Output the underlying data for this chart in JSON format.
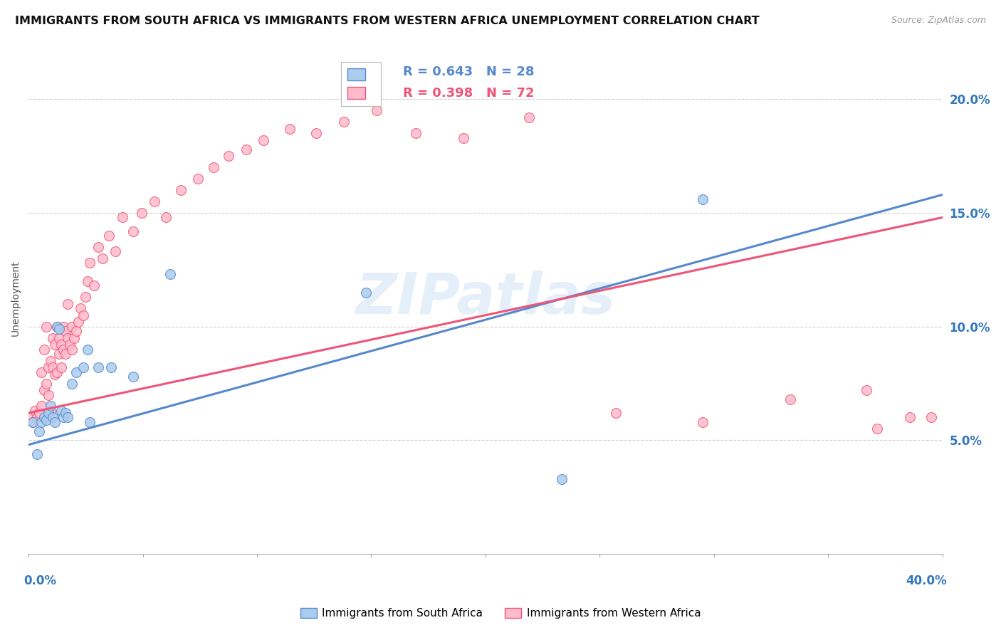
{
  "title": "IMMIGRANTS FROM SOUTH AFRICA VS IMMIGRANTS FROM WESTERN AFRICA UNEMPLOYMENT CORRELATION CHART",
  "source": "Source: ZipAtlas.com",
  "ylabel": "Unemployment",
  "yticks": [
    0.05,
    0.1,
    0.15,
    0.2
  ],
  "ytick_labels": [
    "5.0%",
    "10.0%",
    "15.0%",
    "20.0%"
  ],
  "xlim": [
    0.0,
    0.42
  ],
  "ylim": [
    0.0,
    0.225
  ],
  "blue_color": "#5588CC",
  "pink_color": "#EE5577",
  "blue_fill": "#AACCEE",
  "pink_fill": "#FFBBCC",
  "blue_scatter_x": [
    0.002,
    0.004,
    0.005,
    0.006,
    0.007,
    0.008,
    0.009,
    0.01,
    0.011,
    0.012,
    0.013,
    0.014,
    0.015,
    0.016,
    0.017,
    0.018,
    0.02,
    0.022,
    0.025,
    0.027,
    0.028,
    0.032,
    0.038,
    0.048,
    0.065,
    0.155,
    0.245,
    0.31
  ],
  "blue_scatter_y": [
    0.058,
    0.044,
    0.054,
    0.058,
    0.06,
    0.059,
    0.062,
    0.065,
    0.06,
    0.058,
    0.1,
    0.099,
    0.063,
    0.06,
    0.062,
    0.06,
    0.075,
    0.08,
    0.082,
    0.09,
    0.058,
    0.082,
    0.082,
    0.078,
    0.123,
    0.115,
    0.033,
    0.156
  ],
  "pink_scatter_x": [
    0.001,
    0.002,
    0.003,
    0.004,
    0.005,
    0.006,
    0.006,
    0.007,
    0.007,
    0.008,
    0.008,
    0.009,
    0.009,
    0.01,
    0.01,
    0.011,
    0.011,
    0.012,
    0.012,
    0.013,
    0.013,
    0.014,
    0.014,
    0.015,
    0.015,
    0.016,
    0.016,
    0.017,
    0.017,
    0.018,
    0.018,
    0.019,
    0.02,
    0.02,
    0.021,
    0.022,
    0.023,
    0.024,
    0.025,
    0.026,
    0.027,
    0.028,
    0.03,
    0.032,
    0.034,
    0.037,
    0.04,
    0.043,
    0.048,
    0.052,
    0.058,
    0.063,
    0.07,
    0.078,
    0.085,
    0.092,
    0.1,
    0.108,
    0.12,
    0.132,
    0.145,
    0.16,
    0.178,
    0.2,
    0.23,
    0.27,
    0.31,
    0.35,
    0.385,
    0.415,
    0.39,
    0.405
  ],
  "pink_scatter_y": [
    0.06,
    0.058,
    0.063,
    0.06,
    0.062,
    0.065,
    0.08,
    0.072,
    0.09,
    0.075,
    0.1,
    0.07,
    0.082,
    0.063,
    0.085,
    0.082,
    0.095,
    0.079,
    0.092,
    0.08,
    0.1,
    0.088,
    0.095,
    0.082,
    0.092,
    0.09,
    0.1,
    0.088,
    0.098,
    0.095,
    0.11,
    0.092,
    0.09,
    0.1,
    0.095,
    0.098,
    0.102,
    0.108,
    0.105,
    0.113,
    0.12,
    0.128,
    0.118,
    0.135,
    0.13,
    0.14,
    0.133,
    0.148,
    0.142,
    0.15,
    0.155,
    0.148,
    0.16,
    0.165,
    0.17,
    0.175,
    0.178,
    0.182,
    0.187,
    0.185,
    0.19,
    0.195,
    0.185,
    0.183,
    0.192,
    0.062,
    0.058,
    0.068,
    0.072,
    0.06,
    0.055,
    0.06
  ],
  "blue_line_x": [
    0.0,
    0.42
  ],
  "blue_line_y": [
    0.048,
    0.158
  ],
  "pink_line_x": [
    0.0,
    0.42
  ],
  "pink_line_y": [
    0.062,
    0.148
  ],
  "watermark": "ZIPatlas",
  "background_color": "#ffffff",
  "grid_color": "#d0d0d0",
  "tick_color": "#3377BB",
  "title_fontsize": 11.5,
  "axis_label_fontsize": 10,
  "tick_fontsize": 12
}
